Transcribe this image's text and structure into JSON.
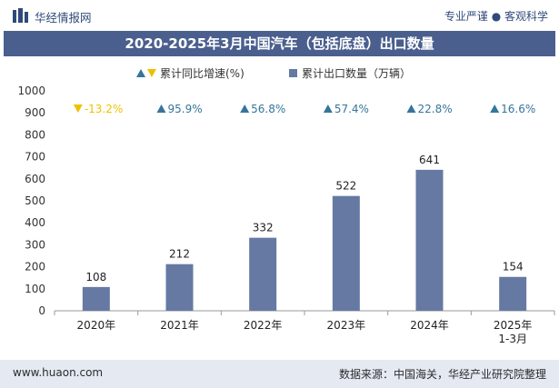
{
  "brand": "华经情报网",
  "tagline": "专业严谨 ● 客观科学",
  "footer": {
    "site": "www.huaon.com",
    "source": "数据来源：中国海关，华经产业研究院整理"
  },
  "colors": {
    "bar": "#6679a2",
    "title_bg": "#4a5f8e",
    "up": "#35759c",
    "down": "#f0c000"
  },
  "chart_data": {
    "type": "bar",
    "title": "2020-2025年3月中国汽车（包括底盘）出口数量",
    "categories": [
      "2020年",
      "2021年",
      "2022年",
      "2023年",
      "2024年",
      "2025年1-3月"
    ],
    "category_lines": [
      [
        "2020年"
      ],
      [
        "2021年"
      ],
      [
        "2022年"
      ],
      [
        "2023年"
      ],
      [
        "2024年"
      ],
      [
        "2025年",
        "1-3月"
      ]
    ],
    "ylim": [
      0,
      1000
    ],
    "yticks": [
      0,
      100,
      200,
      300,
      400,
      500,
      600,
      700,
      800,
      900,
      1000
    ],
    "legend_position": "top-center",
    "grid": false,
    "series": [
      {
        "name": "累计出口数量（万辆）",
        "type": "bar",
        "values": [
          108,
          212,
          332,
          522,
          641,
          154
        ],
        "labels": [
          "108",
          "212",
          "332",
          "522",
          "641",
          "154"
        ]
      },
      {
        "name": "累计同比增速(%)",
        "type": "marker",
        "values": [
          -13.2,
          95.9,
          56.8,
          57.4,
          22.8,
          16.6
        ],
        "labels": [
          "-13.2%",
          "95.9%",
          "56.8%",
          "57.4%",
          "22.8%",
          "16.6%"
        ]
      }
    ]
  }
}
